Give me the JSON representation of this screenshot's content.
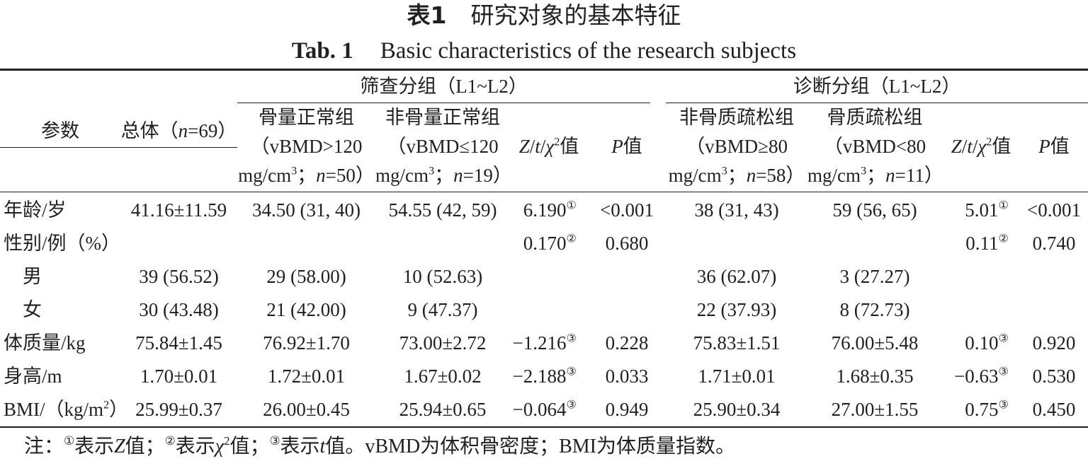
{
  "header": {
    "label_cn": "表1",
    "title_cn": "研究对象的基本特征",
    "label_en": "Tab. 1",
    "title_en": "Basic characteristics of the research subjects"
  },
  "table": {
    "groups": [
      "筛查分组（L1~L2）",
      "诊断分组（L1~L2）"
    ],
    "columns": [
      [
        [
          "参数"
        ]
      ],
      [
        [
          "总体（",
          {
            "text": "n",
            "style": "italic"
          },
          "=69）"
        ]
      ],
      [
        [
          "骨量正常组"
        ],
        [
          "（vBMD>120"
        ],
        [
          "mg/cm",
          {
            "text": "3",
            "style": "sup"
          },
          "；",
          {
            "text": "n",
            "style": "italic"
          },
          "=50）"
        ]
      ],
      [
        [
          "非骨量正常组"
        ],
        [
          "（vBMD≤120"
        ],
        [
          "mg/cm",
          {
            "text": "3",
            "style": "sup"
          },
          "；",
          {
            "text": "n",
            "style": "italic"
          },
          "=19）"
        ]
      ],
      [
        [
          {
            "text": "Z",
            "style": "italic"
          },
          "/",
          {
            "text": "t",
            "style": "italic"
          },
          "/",
          {
            "text": "χ",
            "style": "italic"
          },
          {
            "text": "2",
            "style": "sup"
          },
          "值"
        ]
      ],
      [
        [
          {
            "text": "P",
            "style": "italic"
          },
          "值"
        ]
      ],
      [
        [
          "非骨质疏松组"
        ],
        [
          "（vBMD≥80"
        ],
        [
          "mg/cm",
          {
            "text": "3",
            "style": "sup"
          },
          "；",
          {
            "text": "n",
            "style": "italic"
          },
          "=58）"
        ]
      ],
      [
        [
          "骨质疏松组"
        ],
        [
          "（vBMD<80"
        ],
        [
          "mg/cm",
          {
            "text": "3",
            "style": "sup"
          },
          "；",
          {
            "text": "n",
            "style": "italic"
          },
          "=11）"
        ]
      ],
      [
        [
          {
            "text": "Z",
            "style": "italic"
          },
          "/",
          {
            "text": "t",
            "style": "italic"
          },
          "/",
          {
            "text": "χ",
            "style": "italic"
          },
          {
            "text": "2",
            "style": "sup"
          },
          "值"
        ]
      ],
      [
        [
          {
            "text": "P",
            "style": "italic"
          },
          "值"
        ]
      ]
    ],
    "rows": [
      [
        [
          "年龄/岁"
        ],
        [
          "41.16±11.59"
        ],
        [
          "34.50 (31, 40)"
        ],
        [
          "54.55 (42, 59)"
        ],
        [
          "6.190",
          {
            "text": "①",
            "style": "sup"
          }
        ],
        [
          "<0.001"
        ],
        [
          "38 (31, 43)"
        ],
        [
          "59 (56, 65)"
        ],
        [
          "5.01",
          {
            "text": "①",
            "style": "sup"
          }
        ],
        [
          "<0.001"
        ]
      ],
      [
        [
          "性别/例（%）"
        ],
        null,
        null,
        null,
        [
          "0.170",
          {
            "text": "②",
            "style": "sup"
          }
        ],
        [
          "0.680"
        ],
        null,
        null,
        [
          "0.11",
          {
            "text": "②",
            "style": "sup"
          }
        ],
        [
          "0.740"
        ]
      ],
      [
        [
          "　男"
        ],
        [
          "39 (56.52)"
        ],
        [
          "29 (58.00)"
        ],
        [
          "10 (52.63)"
        ],
        null,
        null,
        [
          "36 (62.07)"
        ],
        [
          "3 (27.27)"
        ],
        null,
        null
      ],
      [
        [
          "　女"
        ],
        [
          "30 (43.48)"
        ],
        [
          "21 (42.00)"
        ],
        [
          "9 (47.37)"
        ],
        null,
        null,
        [
          "22 (37.93)"
        ],
        [
          "8 (72.73)"
        ],
        null,
        null
      ],
      [
        [
          "体质量/kg"
        ],
        [
          "75.84±1.45"
        ],
        [
          "76.92±1.70"
        ],
        [
          "73.00±2.72"
        ],
        [
          "−1.216",
          {
            "text": "③",
            "style": "sup"
          }
        ],
        [
          "0.228"
        ],
        [
          "75.83±1.51"
        ],
        [
          "76.00±5.48"
        ],
        [
          "0.10",
          {
            "text": "③",
            "style": "sup"
          }
        ],
        [
          "0.920"
        ]
      ],
      [
        [
          "身高/m"
        ],
        [
          "1.70±0.01"
        ],
        [
          "1.72±0.01"
        ],
        [
          "1.67±0.02"
        ],
        [
          "−2.188",
          {
            "text": "③",
            "style": "sup"
          }
        ],
        [
          "0.033"
        ],
        [
          "1.71±0.01"
        ],
        [
          "1.68±0.35"
        ],
        [
          "−0.63",
          {
            "text": "③",
            "style": "sup"
          }
        ],
        [
          "0.530"
        ]
      ],
      [
        [
          "BMI/（kg/m",
          {
            "text": "2",
            "style": "sup"
          },
          "）"
        ],
        [
          "25.99±0.37"
        ],
        [
          "26.00±0.45"
        ],
        [
          "25.94±0.65"
        ],
        [
          "−0.064",
          {
            "text": "③",
            "style": "sup"
          }
        ],
        [
          "0.949"
        ],
        [
          "25.90±0.34"
        ],
        [
          "27.00±1.55"
        ],
        [
          "0.75",
          {
            "text": "③",
            "style": "sup"
          }
        ],
        [
          "0.450"
        ]
      ]
    ]
  },
  "note": [
    "注：",
    {
      "text": "①",
      "style": "sup"
    },
    "表示",
    {
      "text": "Z",
      "style": "italic"
    },
    "值；",
    {
      "text": "②",
      "style": "sup"
    },
    "表示",
    {
      "text": "χ",
      "style": "italic"
    },
    {
      "text": "2",
      "style": "sup"
    },
    "值；",
    {
      "text": "③",
      "style": "sup"
    },
    "表示",
    {
      "text": "t",
      "style": "italic"
    },
    "值。vBMD为体积骨密度；BMI为体质量指数。"
  ]
}
